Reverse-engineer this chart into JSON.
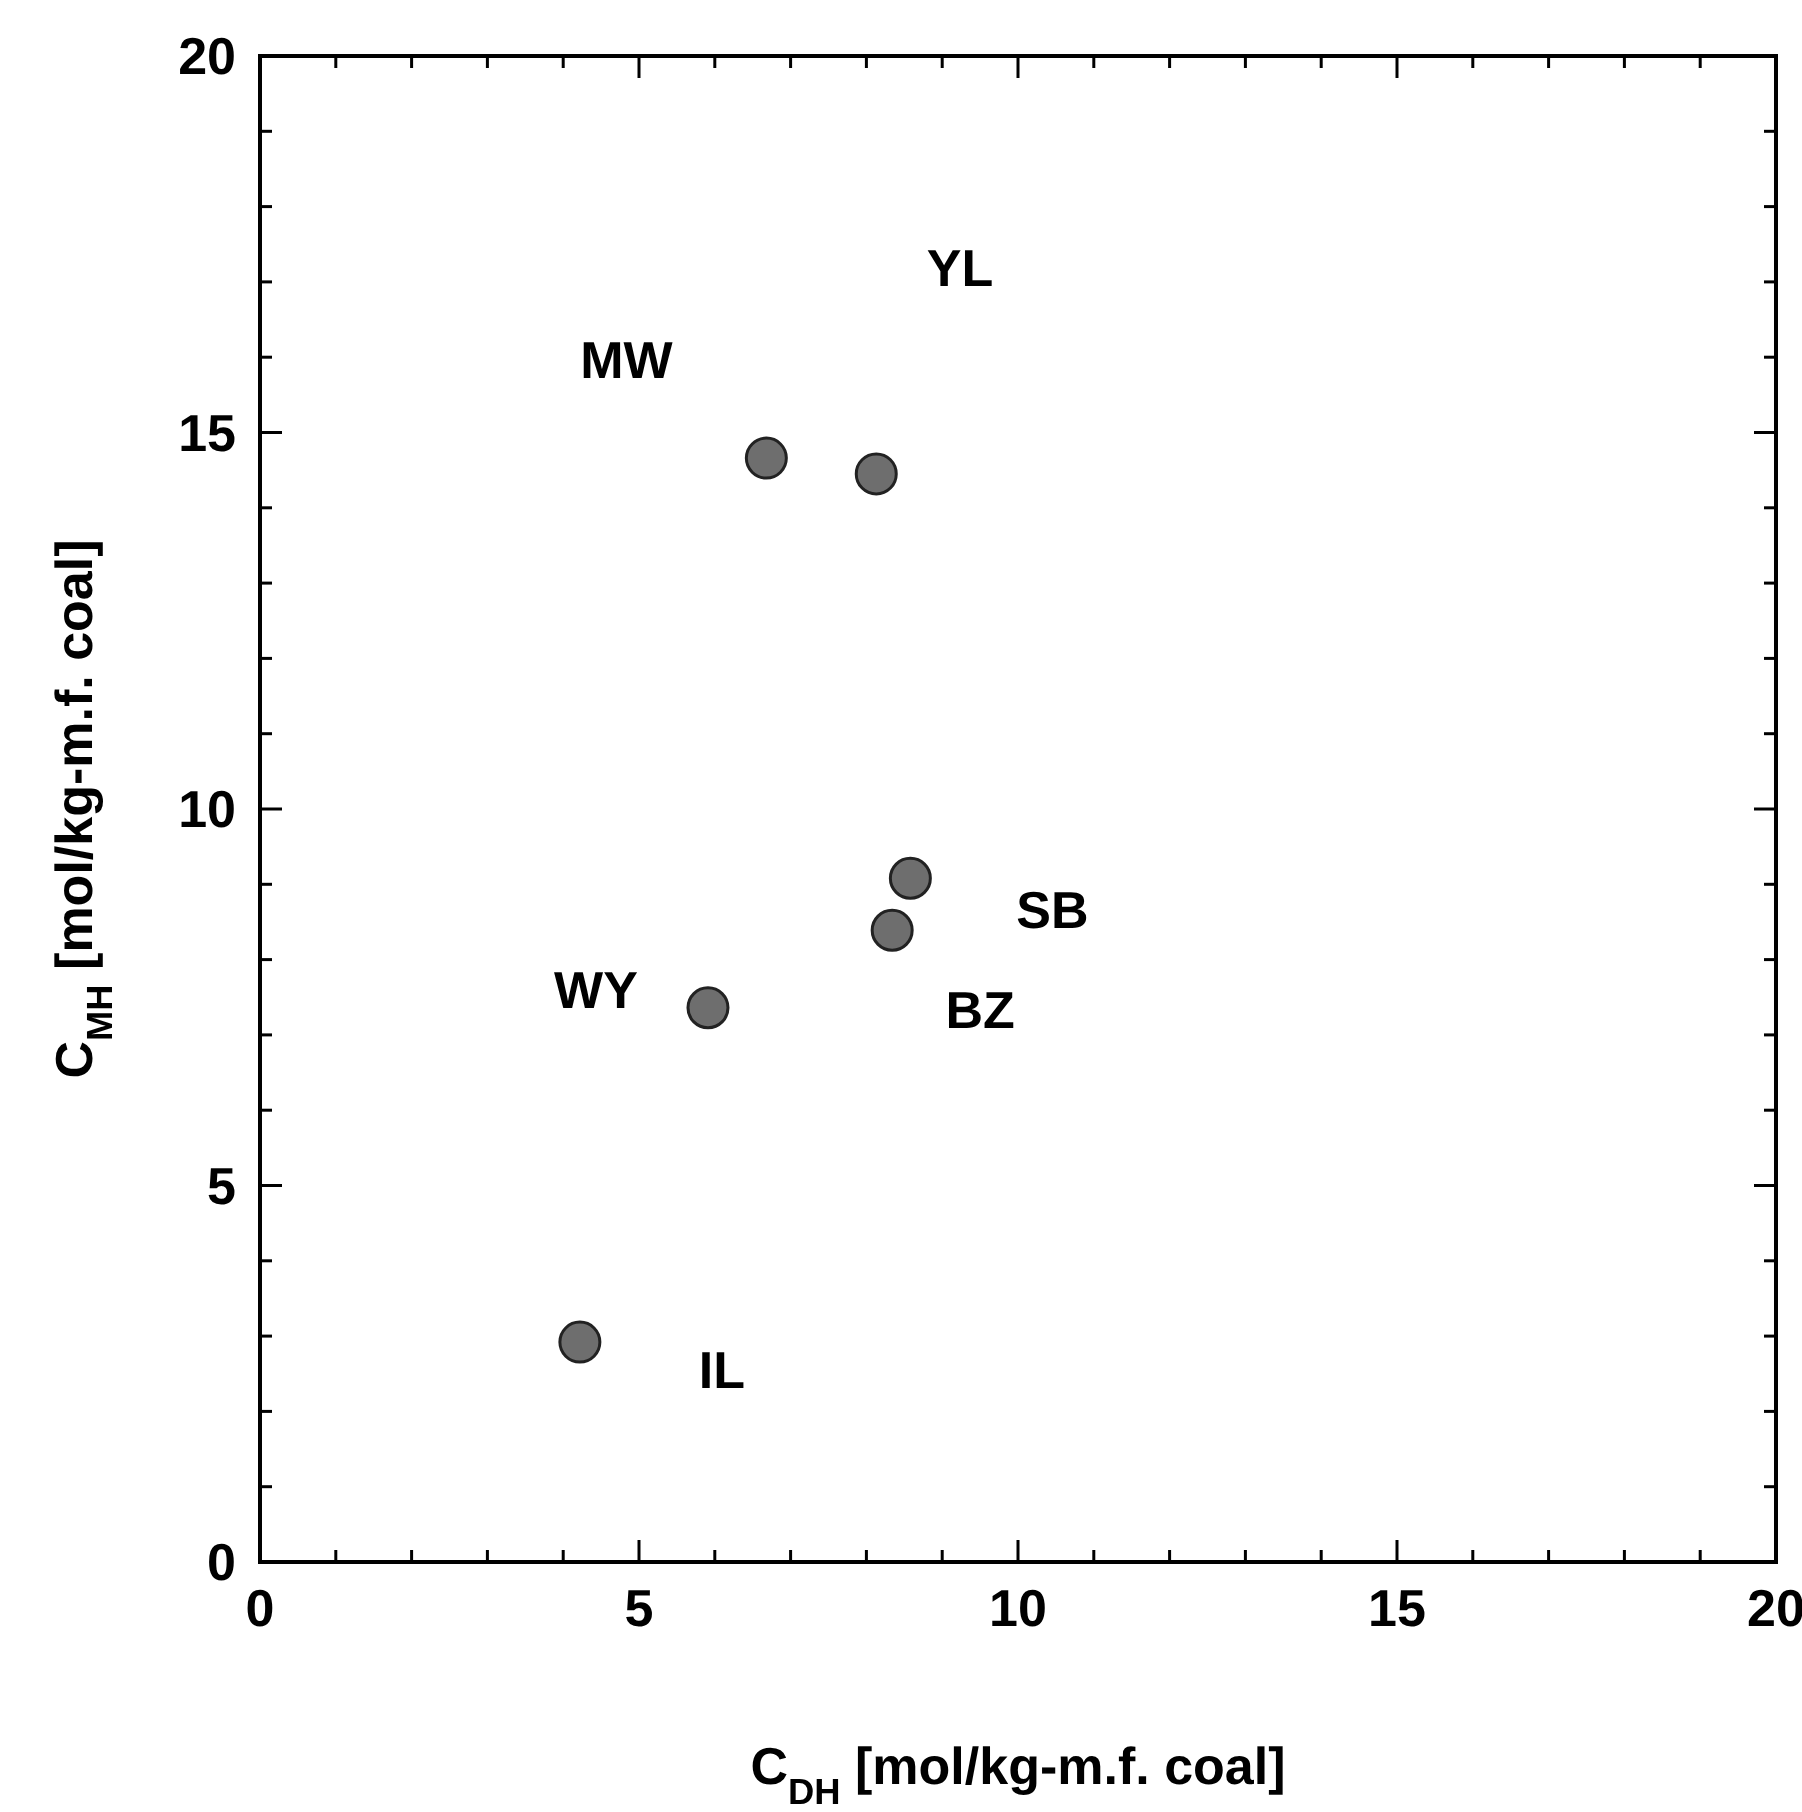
{
  "chart_data": {
    "type": "scatter",
    "xlabel": "C$_{DH}$ [mol/kg-m.f. coal]",
    "ylabel": "C$_{MH}$ [mol/kg-m.f. coal]",
    "x": [
      6.68,
      8.13,
      8.58,
      8.34,
      5.91,
      4.22
    ],
    "values": [
      14.66,
      14.45,
      9.08,
      8.39,
      7.36,
      2.92
    ],
    "color": "#6e6e6e",
    "marker": "circle",
    "grid": false,
    "xlim": [
      0,
      20
    ],
    "ylim": [
      0,
      20
    ],
    "xticks": [
      0,
      {
        "value": 1,
        "label": null
      },
      {
        "value": 2,
        "label": null
      },
      {
        "value": 3,
        "label": null
      },
      {
        "value": 4,
        "label": null
      },
      5,
      {
        "value": 6,
        "label": null
      },
      {
        "value": 7,
        "label": null
      },
      {
        "value": 8,
        "label": null
      },
      {
        "value": 9,
        "label": null
      },
      10,
      {
        "value": 11,
        "label": null
      },
      {
        "value": 12,
        "label": null
      },
      {
        "value": 13,
        "label": null
      },
      {
        "value": 14,
        "label": null
      },
      15,
      {
        "value": 16,
        "label": null
      },
      {
        "value": 17,
        "label": null
      },
      {
        "value": 18,
        "label": null
      },
      {
        "value": 19,
        "label": null
      },
      20
    ],
    "yticks": [
      0,
      {
        "value": 1,
        "label": null
      },
      {
        "value": 2,
        "label": null
      },
      {
        "value": 3,
        "label": null
      },
      {
        "value": 4,
        "label": null
      },
      5,
      {
        "value": 6,
        "label": null
      },
      {
        "value": 7,
        "label": null
      },
      {
        "value": 8,
        "label": null
      },
      {
        "value": 9,
        "label": null
      },
      10,
      {
        "value": 11,
        "label": null
      },
      {
        "value": 12,
        "label": null
      },
      {
        "value": 13,
        "label": null
      },
      {
        "value": 14,
        "label": null
      },
      15,
      {
        "value": 16,
        "label": null
      },
      {
        "value": 17,
        "label": null
      },
      {
        "value": 18,
        "label": null
      },
      {
        "value": 19,
        "label": null
      },
      20
    ],
    "annotations": [
      {
        "text": "MW",
        "x": 6.68,
        "y": 14.66
      },
      "YL",
      {
        "text": "SB",
        "x": 8.58,
        "y": 9.08
      },
      {
        "text": "BZ",
        "x": 8.34,
        "y": 8.39
      },
      {
        "text": "WY",
        "x": 5.91,
        "y": 7.36
      },
      {
        "text": "IL",
        "x": 4.22,
        "y": 2.92
      }
    ]
  }
}
